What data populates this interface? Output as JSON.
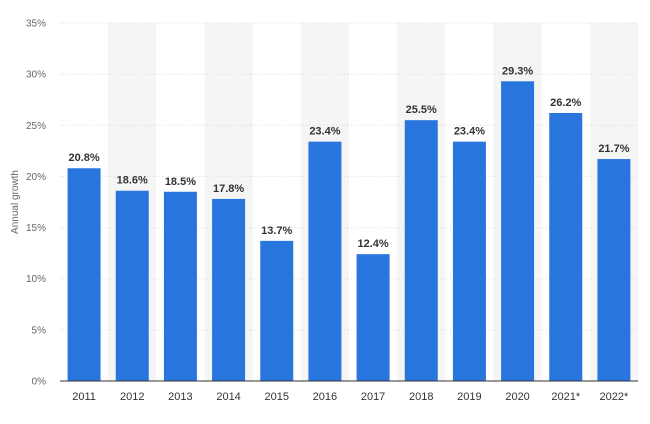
{
  "chart_data": {
    "type": "bar",
    "categories": [
      "2011",
      "2012",
      "2013",
      "2014",
      "2015",
      "2016",
      "2017",
      "2018",
      "2019",
      "2020",
      "2021*",
      "2022*"
    ],
    "values": [
      20.8,
      18.6,
      18.5,
      17.8,
      13.7,
      23.4,
      12.4,
      25.5,
      23.4,
      29.3,
      26.2,
      21.7
    ],
    "data_labels": [
      "20.8%",
      "18.6%",
      "18.5%",
      "17.8%",
      "13.7%",
      "23.4%",
      "12.4%",
      "25.5%",
      "23.4%",
      "29.3%",
      "26.2%",
      "21.7%"
    ],
    "title": "",
    "xlabel": "",
    "ylabel": "Annual growth",
    "ylim": [
      0,
      35
    ],
    "yticks": [
      0,
      5,
      10,
      15,
      20,
      25,
      30,
      35
    ],
    "ytick_labels": [
      "0%",
      "5%",
      "10%",
      "15%",
      "20%",
      "25%",
      "30%",
      "35%"
    ],
    "grid": true,
    "legend": "none",
    "colors": {
      "bar": "#2876dd",
      "band": "#f5f5f5",
      "grid": "#dcdcdc",
      "axis": "#333333"
    }
  }
}
